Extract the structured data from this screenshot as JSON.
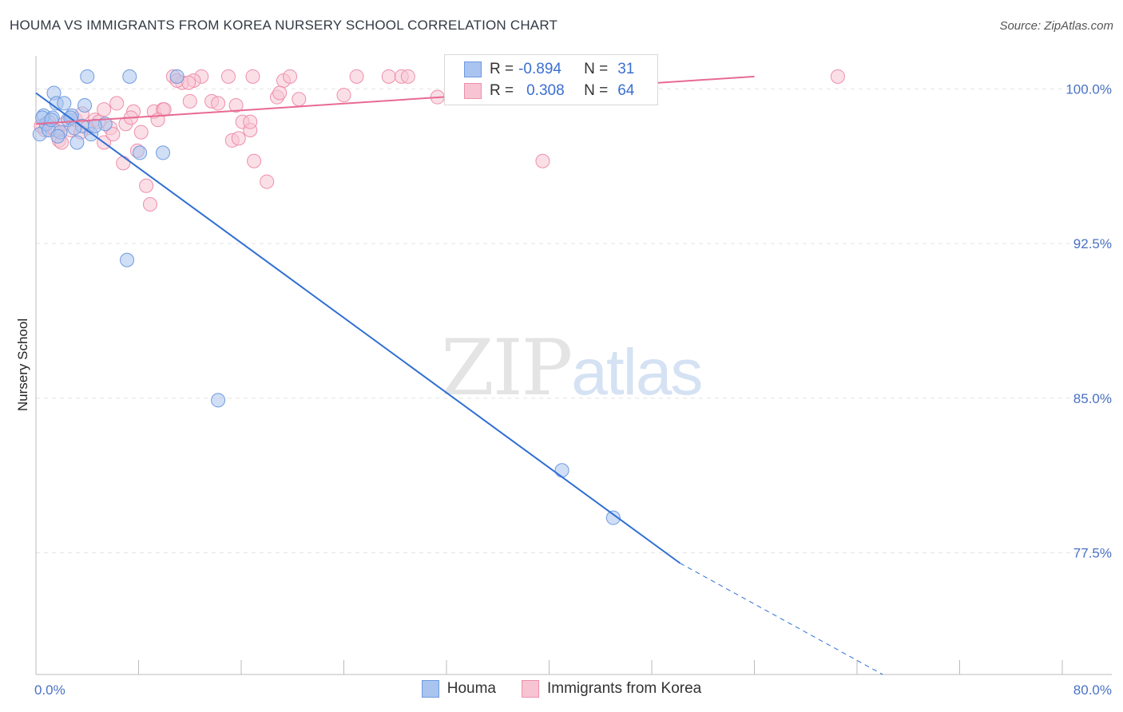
{
  "title": "HOUMA VS IMMIGRANTS FROM KOREA NURSERY SCHOOL CORRELATION CHART",
  "source": "Source: ZipAtlas.com",
  "watermark": {
    "zip": "ZIP",
    "atlas": "atlas"
  },
  "legend": {
    "rows": [
      {
        "r_label": "R =",
        "r_value": "-0.894",
        "n_label": "N =",
        "n_value": "31",
        "color": "#a9c4ef",
        "stroke": "#6f9be0"
      },
      {
        "r_label": "R =",
        "r_value": "0.308",
        "n_label": "N =",
        "n_value": "64",
        "color": "#f7c4d3",
        "stroke": "#ee8fab"
      }
    ]
  },
  "bottom_legend": [
    {
      "label": "Houma",
      "color": "#a9c4ef",
      "stroke": "#6f9be0"
    },
    {
      "label": "Immigrants from Korea",
      "color": "#f7c4d3",
      "stroke": "#ee8fab"
    }
  ],
  "chart_data": {
    "type": "scatter",
    "title": "HOUMA VS IMMIGRANTS FROM KOREA NURSERY SCHOOL CORRELATION CHART",
    "xlabel": "",
    "ylabel": "Nursery School",
    "xlim": [
      0,
      80
    ],
    "ylim": [
      71.6,
      101.6
    ],
    "x_tick_labels": [
      "0.0%",
      "80.0%"
    ],
    "y_ticks": [
      100.0,
      92.5,
      85.0,
      77.5
    ],
    "y_tick_labels": [
      "100.0%",
      "92.5%",
      "85.0%",
      "77.5%"
    ],
    "grid": true,
    "series": [
      {
        "name": "Houma",
        "color": "#6f9be0",
        "fill": "#a9c4ef",
        "points": [
          [
            0.3,
            97.8
          ],
          [
            0.6,
            98.7
          ],
          [
            0.8,
            98.3
          ],
          [
            1.0,
            98.0
          ],
          [
            1.3,
            98.6
          ],
          [
            1.4,
            99.8
          ],
          [
            1.6,
            99.3
          ],
          [
            1.9,
            97.9
          ],
          [
            2.2,
            99.3
          ],
          [
            2.5,
            98.5
          ],
          [
            2.8,
            98.7
          ],
          [
            3.2,
            97.4
          ],
          [
            3.6,
            98.2
          ],
          [
            3.8,
            99.2
          ],
          [
            4.0,
            100.6
          ],
          [
            4.3,
            97.8
          ],
          [
            5.4,
            98.3
          ],
          [
            7.3,
            100.6
          ],
          [
            8.1,
            96.9
          ],
          [
            9.9,
            96.9
          ],
          [
            11.0,
            100.6
          ],
          [
            7.1,
            91.7
          ],
          [
            14.2,
            84.9
          ],
          [
            41.0,
            81.5
          ],
          [
            45.0,
            79.2
          ],
          [
            0.5,
            98.6
          ],
          [
            2.7,
            98.6
          ],
          [
            1.7,
            97.7
          ],
          [
            4.6,
            98.2
          ],
          [
            3.0,
            98.1
          ],
          [
            1.2,
            98.5
          ]
        ],
        "trend": {
          "x0": 0.0,
          "y0": 99.8,
          "x1": 50.2,
          "y1": 77.0,
          "dashed_to_x": 66.0,
          "dashed_to_y": 71.6
        }
      },
      {
        "name": "Immigrants from Korea",
        "color": "#ee8fab",
        "fill": "#f7c4d3",
        "points": [
          [
            0.4,
            98.2
          ],
          [
            0.7,
            98.0
          ],
          [
            1.0,
            98.4
          ],
          [
            1.3,
            98.1
          ],
          [
            1.8,
            97.5
          ],
          [
            2.2,
            98.3
          ],
          [
            2.7,
            98.0
          ],
          [
            3.1,
            98.5
          ],
          [
            3.6,
            98.8
          ],
          [
            4.0,
            98.1
          ],
          [
            4.6,
            98.5
          ],
          [
            5.3,
            99.0
          ],
          [
            5.8,
            98.1
          ],
          [
            6.3,
            99.3
          ],
          [
            7.0,
            98.3
          ],
          [
            7.6,
            98.9
          ],
          [
            8.2,
            97.9
          ],
          [
            9.2,
            98.9
          ],
          [
            9.9,
            99.0
          ],
          [
            10.7,
            100.6
          ],
          [
            11.4,
            100.3
          ],
          [
            12.0,
            99.4
          ],
          [
            12.9,
            100.6
          ],
          [
            13.7,
            99.4
          ],
          [
            15.0,
            100.6
          ],
          [
            15.6,
            99.2
          ],
          [
            16.1,
            98.4
          ],
          [
            16.7,
            98.0
          ],
          [
            16.9,
            100.6
          ],
          [
            18.8,
            99.6
          ],
          [
            19.3,
            100.4
          ],
          [
            19.8,
            100.6
          ],
          [
            20.5,
            99.5
          ],
          [
            27.5,
            100.6
          ],
          [
            28.5,
            100.6
          ],
          [
            29.0,
            100.6
          ],
          [
            31.3,
            99.6
          ],
          [
            5.3,
            97.4
          ],
          [
            6.8,
            96.4
          ],
          [
            8.6,
            95.3
          ],
          [
            8.9,
            94.4
          ],
          [
            11.0,
            100.4
          ],
          [
            14.2,
            99.3
          ],
          [
            12.3,
            100.4
          ],
          [
            15.3,
            97.5
          ],
          [
            16.7,
            98.4
          ],
          [
            17.0,
            96.5
          ],
          [
            18.0,
            95.5
          ],
          [
            15.8,
            97.6
          ],
          [
            7.9,
            97.0
          ],
          [
            39.5,
            96.5
          ],
          [
            62.5,
            100.6
          ],
          [
            10.0,
            99.0
          ],
          [
            3.5,
            97.9
          ],
          [
            2.0,
            97.4
          ],
          [
            1.5,
            98.0
          ],
          [
            4.9,
            98.4
          ],
          [
            6.0,
            97.8
          ],
          [
            9.5,
            98.5
          ],
          [
            11.9,
            100.3
          ],
          [
            7.4,
            98.6
          ],
          [
            19.0,
            99.8
          ],
          [
            25.0,
            100.6
          ],
          [
            24.0,
            99.7
          ]
        ],
        "trend": {
          "x0": 0.0,
          "y0": 98.3,
          "x1": 56.0,
          "y1": 100.6
        }
      }
    ]
  }
}
